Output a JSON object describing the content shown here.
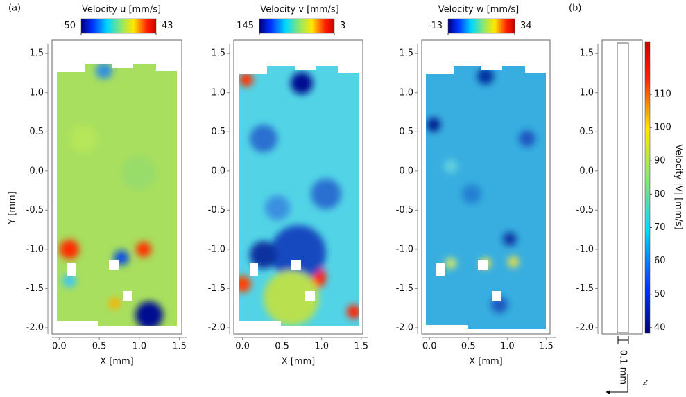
{
  "chart_data": [
    {
      "type": "heatmap",
      "panel_label": "(a)",
      "title": "Velocity u [mm/s]",
      "xlabel": "X [mm]",
      "ylabel": "Y [mm]",
      "xlim": [
        -0.09,
        1.53
      ],
      "ylim": [
        -2.08,
        1.67
      ],
      "xticks": [
        {
          "value": 0,
          "label": "0.0"
        },
        0.5,
        {
          "value": 1,
          "label": "1.0"
        },
        1.5
      ],
      "yticks": [
        {
          "value": -2,
          "label": "-2.0"
        },
        -1.5,
        {
          "value": -1,
          "label": "-1.0"
        },
        -0.5,
        {
          "value": 0,
          "label": "0.0"
        },
        0.5,
        {
          "value": 1,
          "label": "1.0"
        },
        1.5
      ],
      "clim": [
        -50,
        43
      ],
      "cticks": [
        -50,
        43
      ]
    },
    {
      "type": "heatmap",
      "title": "Velocity v [mm/s]",
      "xlabel": "X [mm]",
      "xlim": [
        -0.11,
        1.52
      ],
      "ylim": [
        -2.08,
        1.67
      ],
      "xticks": [
        {
          "value": 0,
          "label": "0.0"
        },
        0.5,
        {
          "value": 1,
          "label": "1.0"
        },
        1.5
      ],
      "yticks": [
        {
          "value": -2,
          "label": "-2.0"
        },
        -1.5,
        {
          "value": -1,
          "label": "-1.0"
        },
        -0.5,
        {
          "value": 0,
          "label": "0.0"
        },
        0.5,
        {
          "value": 1,
          "label": "1.0"
        },
        1.5
      ],
      "clim": [
        -145,
        3
      ],
      "cticks": [
        -145,
        3
      ]
    },
    {
      "type": "heatmap",
      "title": "Velocity w [mm/s]",
      "xlabel": "X [mm]",
      "xlim": [
        -0.1,
        1.55
      ],
      "ylim": [
        -2.08,
        1.67
      ],
      "xticks": [
        {
          "value": 0,
          "label": "0.0"
        },
        0.5,
        {
          "value": 1,
          "label": "1.0"
        },
        1.5
      ],
      "yticks": [
        {
          "value": -2,
          "label": "-2.0"
        },
        -1.5,
        {
          "value": -1,
          "label": "-1.0"
        },
        -0.5,
        {
          "value": 0,
          "label": "0.0"
        },
        0.5,
        {
          "value": 1,
          "label": "1.0"
        },
        1.5
      ],
      "clim": [
        -13,
        34
      ],
      "cticks": [
        -13,
        34
      ]
    },
    {
      "type": "heatmap",
      "panel_label": "(b)",
      "colorbar_label": "Velocity |V| [mm/s]",
      "scale_label": "0.1 mm",
      "axis_name": "z",
      "ylim": [
        -2.08,
        1.67
      ],
      "yticks": [
        {
          "value": -2,
          "label": "-2.0"
        },
        -1.5,
        {
          "value": -1,
          "label": "-1.0"
        },
        -0.5,
        {
          "value": 0,
          "label": "0.0"
        },
        0.5,
        {
          "value": 1,
          "label": "1.0"
        },
        1.5
      ],
      "clim": [
        38.3,
        125.8
      ],
      "cticks": [
        40,
        50,
        60,
        70,
        80,
        90,
        100,
        110
      ]
    }
  ]
}
